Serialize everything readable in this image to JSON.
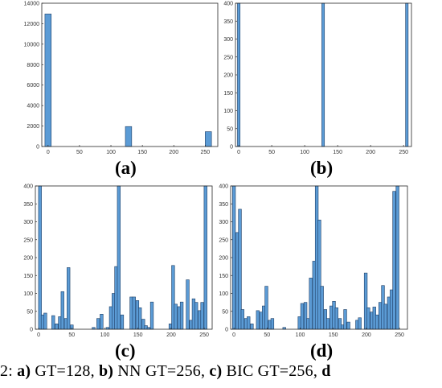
{
  "chart_data": [
    {
      "type": "bar",
      "panel": "a",
      "label": "(a)",
      "xlim": [
        -10,
        270
      ],
      "ylim": [
        0,
        14000
      ],
      "xticks": [
        0,
        50,
        100,
        150,
        200,
        250
      ],
      "yticks": [
        0,
        2000,
        4000,
        6000,
        8000,
        10000,
        12000,
        14000
      ],
      "bin_width": 10,
      "x": [
        0,
        128,
        255
      ],
      "values": [
        12950,
        1950,
        1450
      ],
      "grid": false
    },
    {
      "type": "bar",
      "panel": "b",
      "label": "(b)",
      "xlim": [
        -5,
        262
      ],
      "ylim": [
        0,
        400
      ],
      "xticks": [
        0,
        50,
        100,
        150,
        200,
        250
      ],
      "yticks": [
        0,
        50,
        100,
        150,
        200,
        250,
        300,
        350,
        400
      ],
      "bin_width": 4,
      "x": [
        0,
        128,
        255
      ],
      "values": [
        400,
        400,
        400
      ],
      "grid": false
    },
    {
      "type": "bar",
      "panel": "c",
      "label": "(c)",
      "xlim": [
        -5,
        262
      ],
      "ylim": [
        0,
        400
      ],
      "xticks": [
        0,
        50,
        100,
        150,
        200,
        250
      ],
      "yticks": [
        0,
        50,
        100,
        150,
        200,
        250,
        300,
        350,
        400
      ],
      "bin_width": 4.5,
      "x": [
        2,
        6,
        10,
        22,
        27,
        32,
        36,
        41,
        45,
        50,
        55,
        59,
        68,
        83,
        90,
        95,
        104,
        109,
        113,
        117,
        121,
        126,
        130,
        140,
        144,
        149,
        153,
        158,
        162,
        166,
        171,
        194,
        199,
        203,
        207,
        212,
        216,
        225,
        230,
        234,
        238,
        243,
        247,
        252,
        256
      ],
      "values": [
        400,
        40,
        45,
        38,
        15,
        35,
        105,
        30,
        172,
        12,
        0,
        0,
        0,
        5,
        30,
        42,
        5,
        63,
        100,
        175,
        400,
        40,
        0,
        90,
        90,
        80,
        60,
        28,
        10,
        5,
        76,
        0,
        15,
        178,
        70,
        63,
        76,
        138,
        25,
        85,
        75,
        52,
        75,
        400,
        0
      ],
      "grid": false
    },
    {
      "type": "bar",
      "panel": "d",
      "label": "(d)",
      "xlim": [
        -5,
        262
      ],
      "ylim": [
        0,
        400
      ],
      "xticks": [
        0,
        50,
        100,
        150,
        200,
        250
      ],
      "yticks": [
        0,
        50,
        100,
        150,
        200,
        250,
        300,
        350,
        400
      ],
      "bin_width": 4.5,
      "x": [
        0,
        5,
        9,
        13,
        18,
        22,
        27,
        36,
        41,
        45,
        49,
        54,
        58,
        63,
        76,
        99,
        103,
        108,
        112,
        116,
        121,
        125,
        129,
        133,
        138,
        142,
        147,
        151,
        155,
        160,
        164,
        168,
        173,
        181,
        186,
        190,
        199,
        203,
        208,
        212,
        216,
        221,
        225,
        229,
        234,
        238,
        242,
        247,
        251,
        255
      ],
      "values": [
        400,
        270,
        335,
        55,
        30,
        35,
        15,
        52,
        48,
        65,
        120,
        25,
        30,
        0,
        5,
        35,
        72,
        75,
        30,
        143,
        190,
        400,
        305,
        120,
        55,
        30,
        65,
        78,
        60,
        30,
        12,
        55,
        20,
        0,
        25,
        32,
        157,
        60,
        48,
        62,
        40,
        75,
        122,
        70,
        90,
        110,
        385,
        400,
        0,
        0
      ],
      "grid": false
    }
  ],
  "caption": {
    "lead": "2: ",
    "a_letter": "a)",
    "a_text": " GT=128, ",
    "b_letter": "b)",
    "b_text": " NN GT=256, ",
    "c_letter": "c)",
    "c_text": " BIC GT=256, ",
    "d_letter": "d"
  }
}
